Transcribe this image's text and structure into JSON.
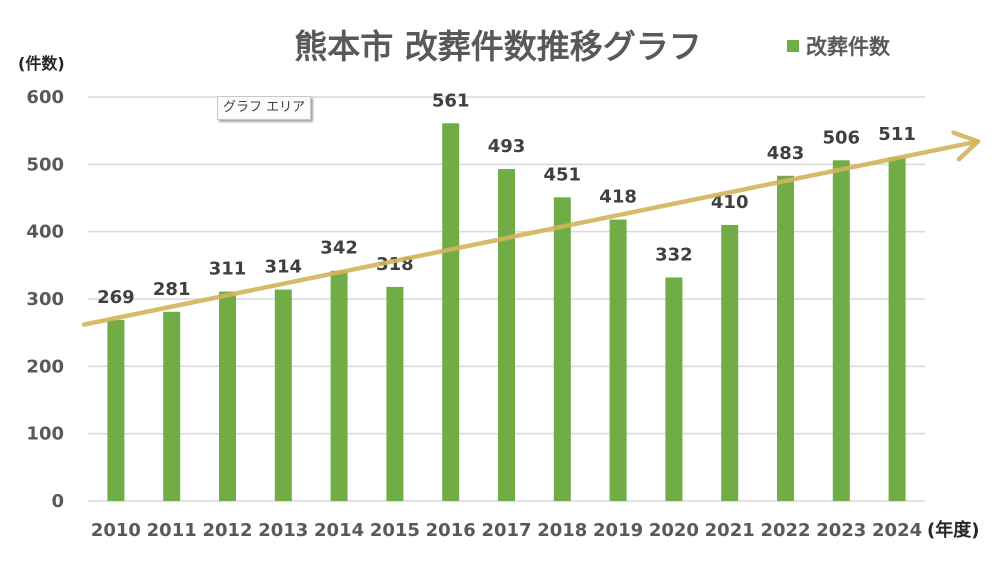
{
  "chart_data": {
    "type": "bar",
    "title": "熊本市 改葬件数推移グラフ",
    "xlabel": "(年度)",
    "ylabel": "(件数)",
    "categories": [
      "2010",
      "2011",
      "2012",
      "2013",
      "2014",
      "2015",
      "2016",
      "2017",
      "2018",
      "2019",
      "2020",
      "2021",
      "2022",
      "2023",
      "2024"
    ],
    "series": [
      {
        "name": "改葬件数",
        "color": "#70ad47",
        "values": [
          269,
          281,
          311,
          314,
          342,
          318,
          561,
          493,
          451,
          418,
          332,
          410,
          483,
          506,
          511
        ]
      }
    ],
    "ylim": [
      0,
      600
    ],
    "yticks": [
      "0",
      "100",
      "200",
      "300",
      "400",
      "500",
      "600"
    ],
    "grid": true,
    "legend": {
      "position": "top-right",
      "entries": [
        "改葬件数"
      ]
    },
    "data_labels": true,
    "annotations": [
      {
        "type": "trend-arrow",
        "color": "#d4b45a",
        "from_value": 262,
        "to_value": 534,
        "description": "upward trend arrow"
      }
    ]
  },
  "tooltip": {
    "text": "グラフ エリア"
  },
  "colors": {
    "bar": "#70ad47",
    "arrow": "#d4b45a",
    "grid": "#d9d9d9",
    "text": "#595959"
  }
}
